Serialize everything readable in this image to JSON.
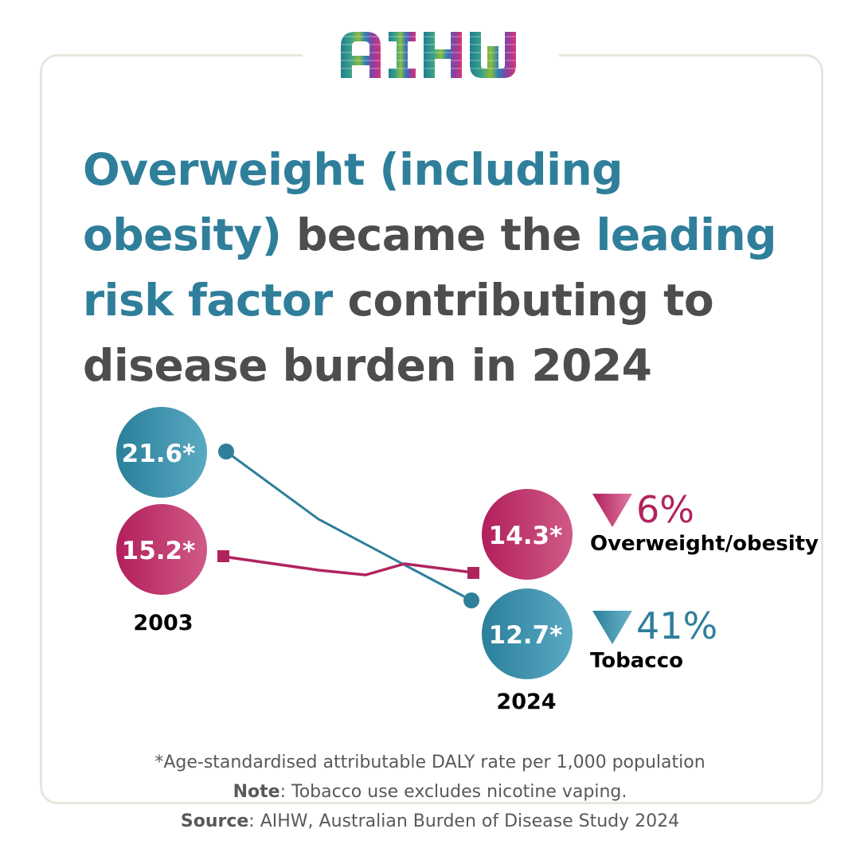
{
  "brand": {
    "name": "AIHW",
    "colors": [
      "#1f7e8f",
      "#3aa08a",
      "#8bbd3a",
      "#2e7fb8",
      "#8b3fa0",
      "#d4357a"
    ]
  },
  "headline": {
    "segments": [
      {
        "text": "Overweight (including ",
        "accent": true
      },
      {
        "text": "obesity) ",
        "accent": true
      },
      {
        "text": "became the ",
        "accent": false
      },
      {
        "text": "leading ",
        "accent": true
      },
      {
        "text": "risk factor ",
        "accent": true
      },
      {
        "text": "contributing to ",
        "accent": false
      },
      {
        "text": "disease burden in 2024",
        "accent": false
      }
    ]
  },
  "colors": {
    "tobacco": "#2f7f9b",
    "overweight": "#b0245e",
    "text_dark": "#000000",
    "text_grey": "#58595b"
  },
  "chart_data": {
    "type": "line",
    "x": [
      "2003",
      "2024"
    ],
    "series": [
      {
        "name": "Tobacco",
        "start_value": 21.6,
        "end_value": 12.7,
        "start_label": "21.6*",
        "end_label": "12.7*",
        "change": "41%",
        "direction": "down",
        "color": "#2f7f9b"
      },
      {
        "name": "Overweight/obesity",
        "start_value": 15.2,
        "end_value": 14.3,
        "start_label": "15.2*",
        "end_label": "14.3*",
        "change": "6%",
        "direction": "down",
        "color": "#b0245e"
      }
    ]
  },
  "footer": {
    "footnote": "*Age-standardised attributable DALY rate per 1,000 population",
    "note_label": "Note",
    "note_text": ": Tobacco use excludes nicotine vaping.",
    "source_label": "Source",
    "source_text": ": AIHW, Australian Burden of Disease Study 2024"
  }
}
